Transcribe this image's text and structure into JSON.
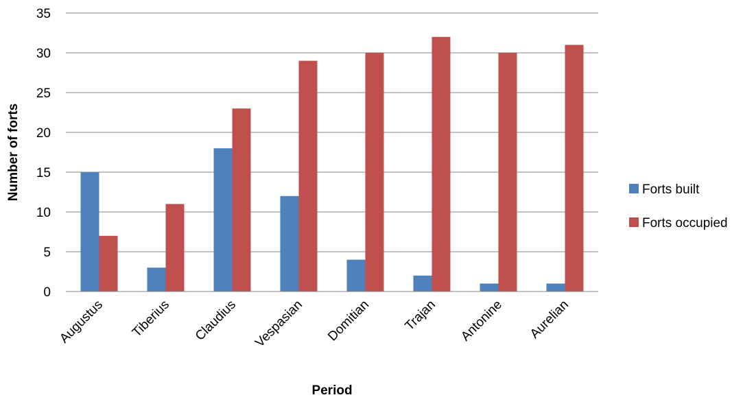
{
  "chart_data": {
    "type": "bar",
    "title": "",
    "xlabel": "Period",
    "ylabel": "Number of forts",
    "categories": [
      "Augustus",
      "Tiberius",
      "Claudius",
      "Vespasian",
      "Domitian",
      "Trajan",
      "Antonine",
      "Aurelian"
    ],
    "series": [
      {
        "name": "Forts built",
        "color": "#4f81bd",
        "values": [
          15,
          3,
          18,
          12,
          4,
          2,
          1,
          1
        ]
      },
      {
        "name": "Forts occupied",
        "color": "#c0504d",
        "values": [
          7,
          11,
          23,
          29,
          30,
          32,
          30,
          31
        ]
      }
    ],
    "ylim": [
      0,
      35
    ],
    "yticks": [
      0,
      5,
      10,
      15,
      20,
      25,
      30,
      35
    ],
    "grid": true,
    "legend_position": "right"
  }
}
